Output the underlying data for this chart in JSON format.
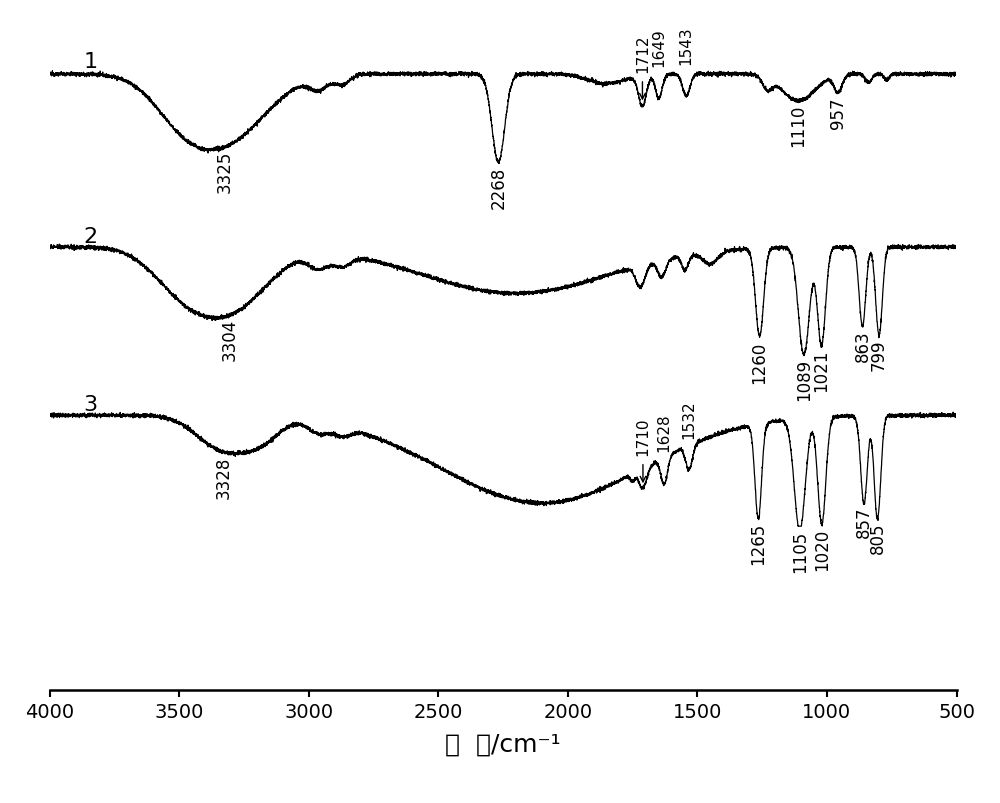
{
  "xlabel": "波  数/cm⁻¹",
  "xlabel_fontsize": 18,
  "background_color": "#ffffff",
  "spectrum1_label": "1",
  "spectrum2_label": "2",
  "spectrum3_label": "3",
  "ann_fontsize": 12,
  "label_fontsize": 16,
  "tick_fontsize": 14,
  "linewidth": 0.9
}
